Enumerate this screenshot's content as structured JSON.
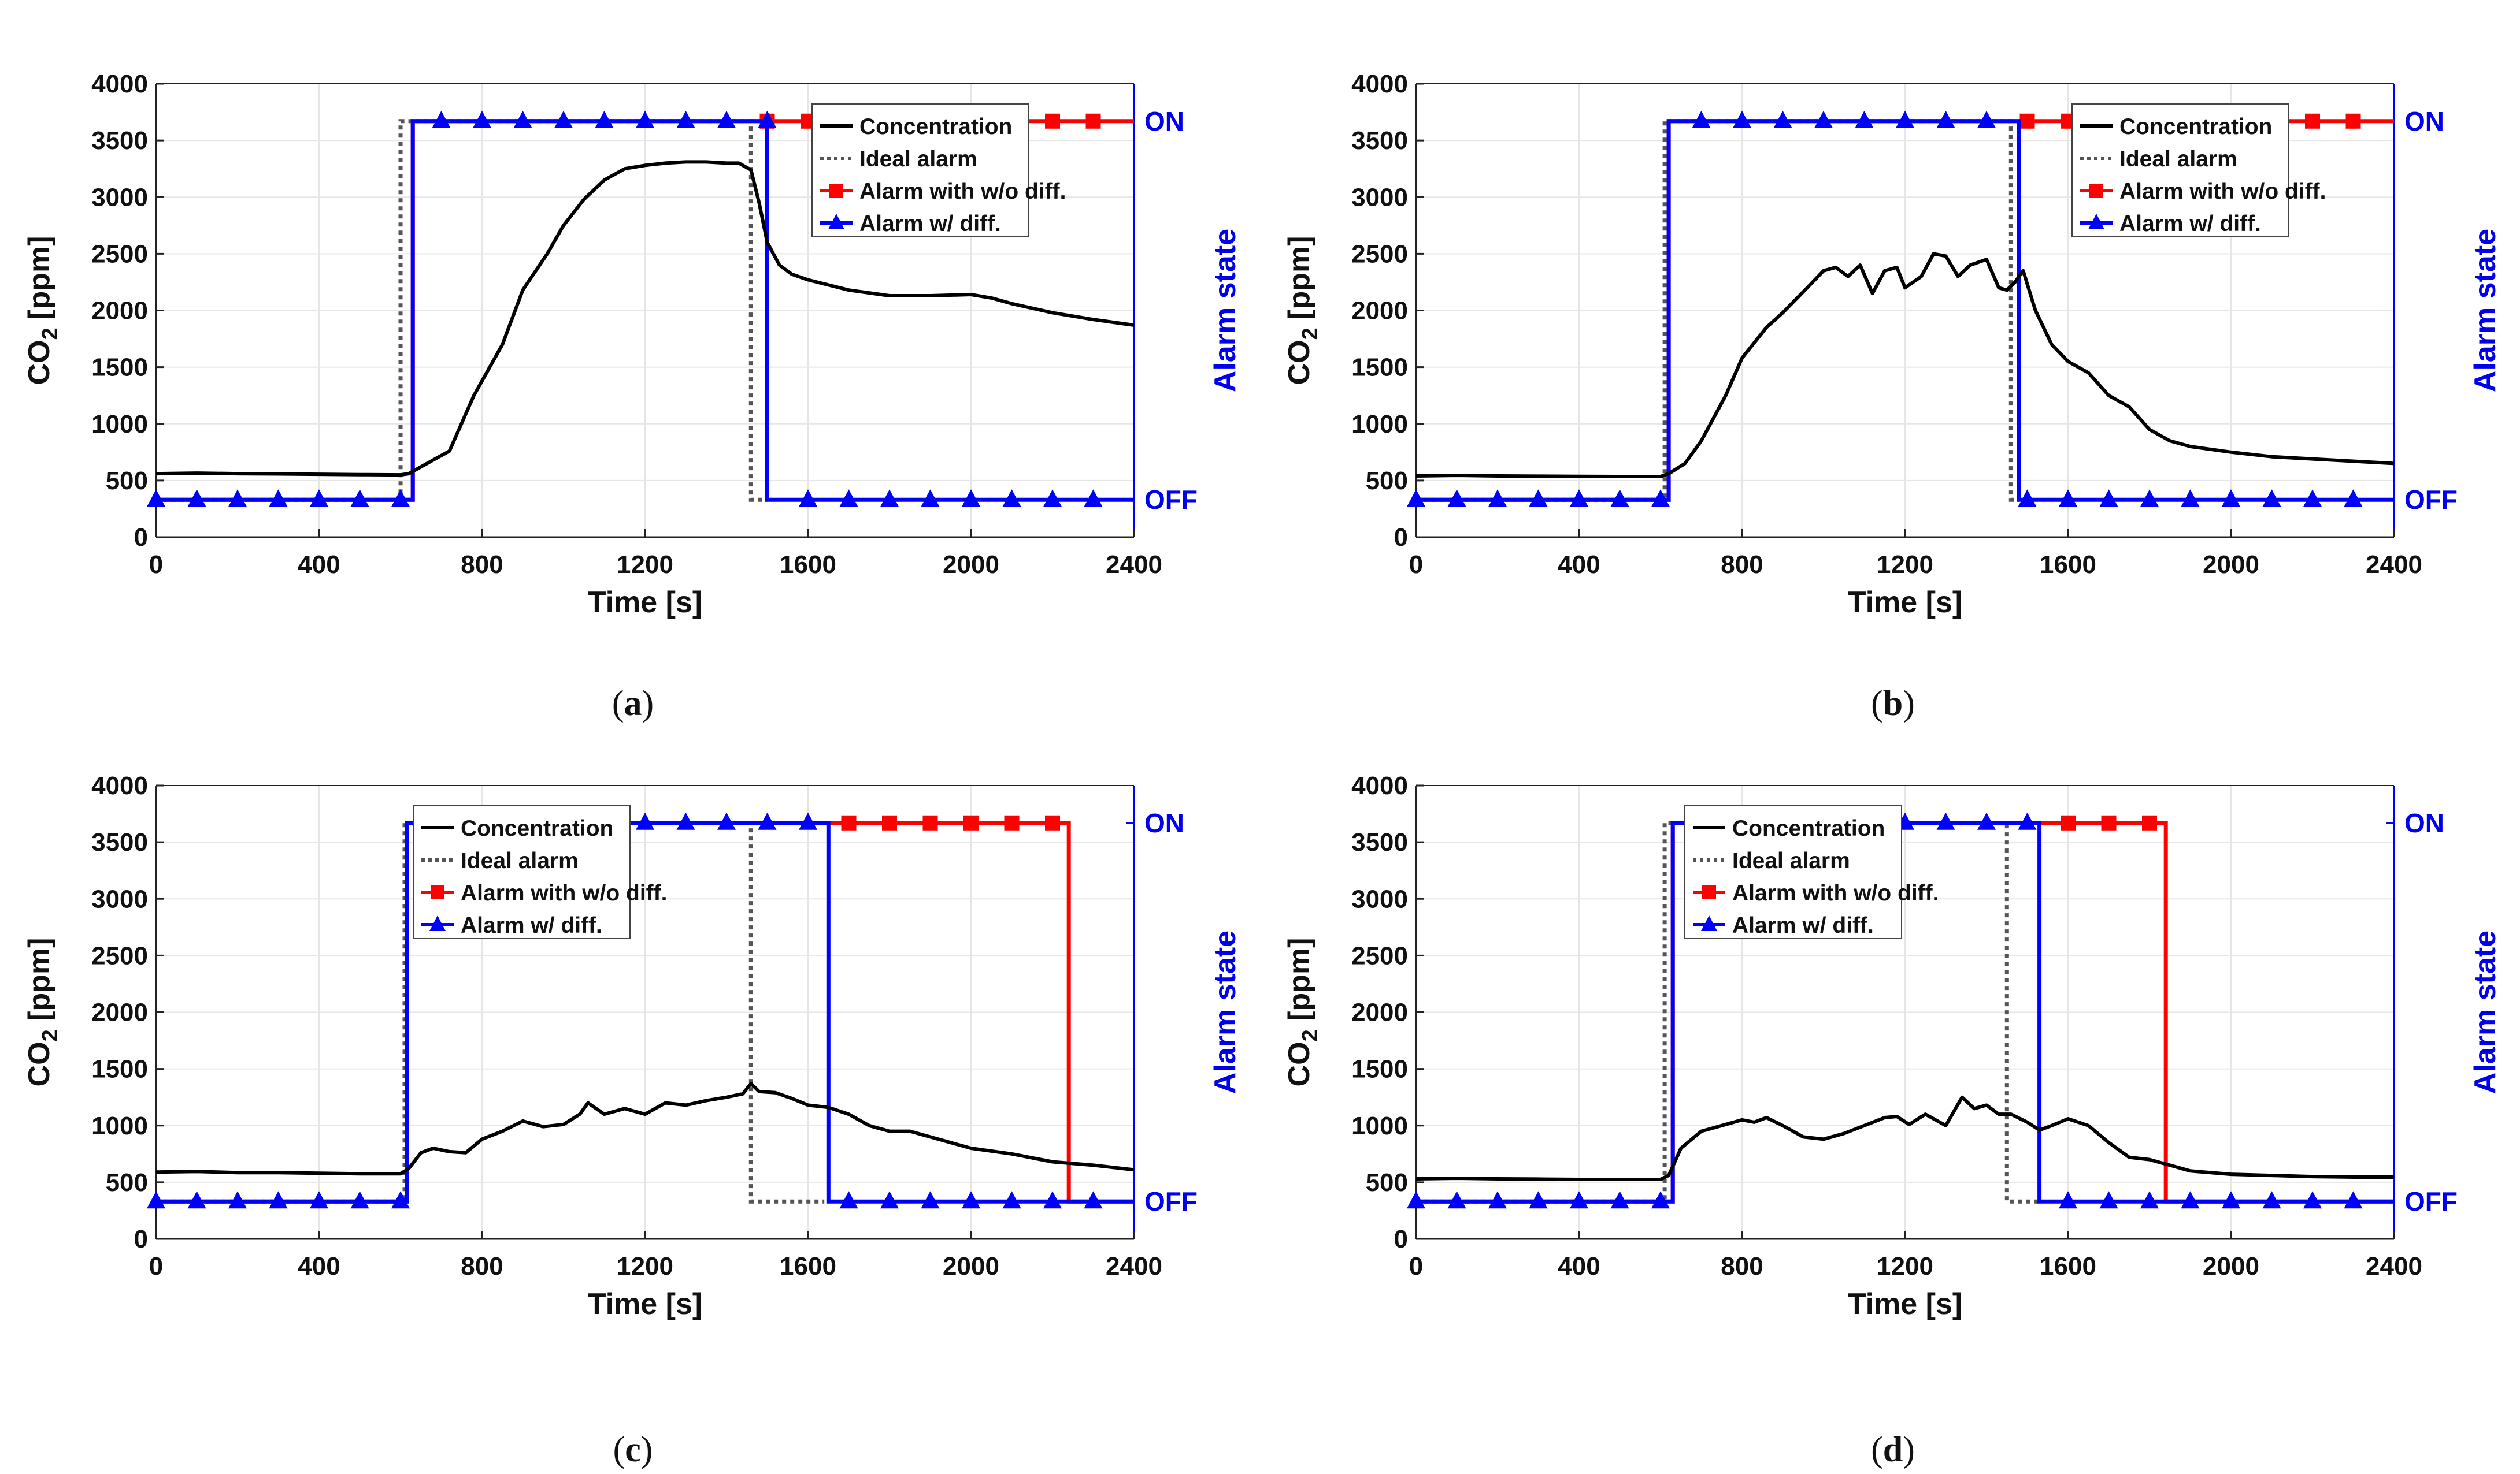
{
  "figure": {
    "panels": [
      {
        "caption_open": "(",
        "caption_letter": "a",
        "caption_close": ")"
      },
      {
        "caption_open": "(",
        "caption_letter": "b",
        "caption_close": ")"
      },
      {
        "caption_open": "(",
        "caption_letter": "c",
        "caption_close": ")"
      },
      {
        "caption_open": "(",
        "caption_letter": "d",
        "caption_close": ")"
      }
    ]
  },
  "chart_data": [
    {
      "type": "line",
      "panel": "a",
      "xlabel": "Time [s]",
      "ylabel": "CO2 [ppm]",
      "ylabel_main": "CO",
      "ylabel_sub": "2",
      "ylabel_unit": " [ppm]",
      "y2label": "Alarm state",
      "y2_on_label": "ON",
      "y2_off_label": "OFF",
      "xlim": [
        0,
        2400
      ],
      "ylim": [
        0,
        4000
      ],
      "xticks": [
        "0",
        "400",
        "800",
        "1200",
        "1600",
        "2000",
        "2400"
      ],
      "yticks": [
        "0",
        "500",
        "1000",
        "1500",
        "2000",
        "2500",
        "3000",
        "3500",
        "4000"
      ],
      "grid": true,
      "legend_position": "top-right",
      "legend": [
        "Concentration",
        "Ideal alarm",
        "Alarm with w/o diff.",
        "Alarm w/ diff."
      ],
      "series": [
        {
          "name": "Concentration",
          "color": "#000000",
          "style": "solid",
          "x": [
            0,
            100,
            200,
            300,
            400,
            500,
            600,
            620,
            680,
            720,
            780,
            850,
            900,
            960,
            1000,
            1050,
            1100,
            1150,
            1200,
            1250,
            1300,
            1350,
            1400,
            1430,
            1460,
            1480,
            1500,
            1530,
            1560,
            1600,
            1700,
            1800,
            1900,
            2000,
            2050,
            2100,
            2200,
            2300,
            2400
          ],
          "y": [
            560,
            565,
            560,
            558,
            555,
            552,
            550,
            560,
            680,
            760,
            1250,
            1700,
            2180,
            2500,
            2750,
            2980,
            3150,
            3250,
            3280,
            3300,
            3310,
            3310,
            3300,
            3300,
            3240,
            2950,
            2600,
            2400,
            2320,
            2270,
            2180,
            2130,
            2130,
            2140,
            2110,
            2060,
            1980,
            1920,
            1870
          ]
        },
        {
          "name": "Ideal alarm",
          "color": "#555555",
          "style": "dotted",
          "x": [
            0,
            600,
            600,
            1460,
            1460,
            1500
          ],
          "y": [
            0,
            0,
            1,
            1,
            0,
            0
          ]
        },
        {
          "name": "Alarm with w/o diff.",
          "color": "#ff0000",
          "style": "solid",
          "marker": "square",
          "x": [
            0,
            630,
            630,
            2400
          ],
          "y": [
            0,
            0,
            1,
            1
          ]
        },
        {
          "name": "Alarm w/ diff.",
          "color": "#0000ff",
          "style": "solid",
          "marker": "triangle",
          "x": [
            0,
            630,
            630,
            1500,
            1500,
            2400
          ],
          "y": [
            0,
            0,
            1,
            1,
            0,
            0
          ]
        }
      ]
    },
    {
      "type": "line",
      "panel": "b",
      "xlabel": "Time [s]",
      "ylabel": "CO2 [ppm]",
      "ylabel_main": "CO",
      "ylabel_sub": "2",
      "ylabel_unit": " [ppm]",
      "y2label": "Alarm state",
      "y2_on_label": "ON",
      "y2_off_label": "OFF",
      "xlim": [
        0,
        2400
      ],
      "ylim": [
        0,
        4000
      ],
      "xticks": [
        "0",
        "400",
        "800",
        "1200",
        "1600",
        "2000",
        "2400"
      ],
      "yticks": [
        "0",
        "500",
        "1000",
        "1500",
        "2000",
        "2500",
        "3000",
        "3500",
        "4000"
      ],
      "grid": true,
      "legend_position": "top-right",
      "legend": [
        "Concentration",
        "Ideal alarm",
        "Alarm with w/o diff.",
        "Alarm w/ diff."
      ],
      "series": [
        {
          "name": "Concentration",
          "color": "#000000",
          "style": "solid",
          "x": [
            0,
            100,
            200,
            300,
            400,
            500,
            600,
            620,
            660,
            700,
            760,
            800,
            860,
            900,
            960,
            1000,
            1030,
            1060,
            1090,
            1120,
            1150,
            1180,
            1200,
            1240,
            1270,
            1300,
            1330,
            1360,
            1400,
            1430,
            1450,
            1470,
            1490,
            1520,
            1560,
            1600,
            1650,
            1700,
            1750,
            1800,
            1850,
            1900,
            2000,
            2100,
            2200,
            2300,
            2400
          ],
          "y": [
            540,
            545,
            540,
            538,
            536,
            535,
            535,
            560,
            650,
            850,
            1250,
            1580,
            1850,
            1980,
            2200,
            2350,
            2380,
            2300,
            2400,
            2150,
            2350,
            2380,
            2200,
            2300,
            2500,
            2480,
            2300,
            2400,
            2450,
            2200,
            2180,
            2250,
            2350,
            2000,
            1700,
            1550,
            1450,
            1250,
            1150,
            950,
            850,
            800,
            750,
            710,
            690,
            670,
            650
          ]
        },
        {
          "name": "Ideal alarm",
          "color": "#555555",
          "style": "dotted",
          "x": [
            0,
            610,
            610,
            1460,
            1460,
            1480
          ],
          "y": [
            0,
            0,
            1,
            1,
            0,
            0
          ]
        },
        {
          "name": "Alarm with w/o diff.",
          "color": "#ff0000",
          "style": "solid",
          "marker": "square",
          "x": [
            0,
            620,
            620,
            2400
          ],
          "y": [
            0,
            0,
            1,
            1
          ]
        },
        {
          "name": "Alarm w/ diff.",
          "color": "#0000ff",
          "style": "solid",
          "marker": "triangle",
          "x": [
            0,
            620,
            620,
            1480,
            1480,
            2400
          ],
          "y": [
            0,
            0,
            1,
            1,
            0,
            0
          ]
        }
      ]
    },
    {
      "type": "line",
      "panel": "c",
      "xlabel": "Time [s]",
      "ylabel": "CO2 [ppm]",
      "ylabel_main": "CO",
      "ylabel_sub": "2",
      "ylabel_unit": " [ppm]",
      "y2label": "Alarm state",
      "y2_on_label": "ON",
      "y2_off_label": "OFF",
      "xlim": [
        0,
        2400
      ],
      "ylim": [
        0,
        4000
      ],
      "xticks": [
        "0",
        "400",
        "800",
        "1200",
        "1600",
        "2000",
        "2400"
      ],
      "yticks": [
        "0",
        "500",
        "1000",
        "1500",
        "2000",
        "2500",
        "3000",
        "3500",
        "4000"
      ],
      "grid": true,
      "legend_position": "top-left",
      "legend": [
        "Concentration",
        "Ideal alarm",
        "Alarm with w/o diff.",
        "Alarm w/ diff."
      ],
      "series": [
        {
          "name": "Concentration",
          "color": "#000000",
          "style": "solid",
          "x": [
            0,
            100,
            200,
            300,
            400,
            500,
            600,
            620,
            650,
            680,
            720,
            760,
            800,
            850,
            900,
            950,
            1000,
            1040,
            1060,
            1080,
            1100,
            1150,
            1200,
            1250,
            1300,
            1350,
            1400,
            1440,
            1460,
            1480,
            1520,
            1560,
            1600,
            1650,
            1700,
            1750,
            1800,
            1850,
            1900,
            2000,
            2100,
            2200,
            2300,
            2400
          ],
          "y": [
            590,
            595,
            585,
            585,
            580,
            575,
            575,
            620,
            760,
            800,
            770,
            760,
            880,
            950,
            1040,
            990,
            1010,
            1100,
            1200,
            1150,
            1100,
            1150,
            1100,
            1200,
            1180,
            1220,
            1250,
            1280,
            1370,
            1300,
            1290,
            1240,
            1180,
            1160,
            1100,
            1000,
            950,
            950,
            900,
            800,
            750,
            680,
            650,
            610
          ]
        },
        {
          "name": "Ideal alarm",
          "color": "#555555",
          "style": "dotted",
          "x": [
            0,
            610,
            610,
            1460,
            1460,
            1640
          ],
          "y": [
            0,
            0,
            1,
            1,
            0,
            0
          ]
        },
        {
          "name": "Alarm with w/o diff.",
          "color": "#ff0000",
          "style": "solid",
          "marker": "square",
          "x": [
            0,
            615,
            615,
            2240,
            2240,
            2400
          ],
          "y": [
            0,
            0,
            1,
            1,
            0,
            0
          ]
        },
        {
          "name": "Alarm w/ diff.",
          "color": "#0000ff",
          "style": "solid",
          "marker": "triangle",
          "x": [
            0,
            615,
            615,
            1650,
            1650,
            2400
          ],
          "y": [
            0,
            0,
            1,
            1,
            0,
            0
          ]
        }
      ]
    },
    {
      "type": "line",
      "panel": "d",
      "xlabel": "Time [s]",
      "ylabel": "CO2 [ppm]",
      "ylabel_main": "CO",
      "ylabel_sub": "2",
      "ylabel_unit": " [ppm]",
      "y2label": "Alarm state",
      "y2_on_label": "ON",
      "y2_off_label": "OFF",
      "xlim": [
        0,
        2400
      ],
      "ylim": [
        0,
        4000
      ],
      "xticks": [
        "0",
        "400",
        "800",
        "1200",
        "1600",
        "2000",
        "2400"
      ],
      "yticks": [
        "0",
        "500",
        "1000",
        "1500",
        "2000",
        "2500",
        "3000",
        "3500",
        "4000"
      ],
      "grid": true,
      "legend_position": "top-left",
      "legend": [
        "Concentration",
        "Ideal alarm",
        "Alarm with w/o diff.",
        "Alarm w/ diff."
      ],
      "series": [
        {
          "name": "Concentration",
          "color": "#000000",
          "style": "solid",
          "x": [
            0,
            100,
            200,
            300,
            400,
            500,
            600,
            620,
            650,
            700,
            750,
            800,
            830,
            860,
            900,
            950,
            1000,
            1050,
            1100,
            1150,
            1180,
            1210,
            1250,
            1300,
            1340,
            1370,
            1400,
            1430,
            1460,
            1500,
            1530,
            1560,
            1600,
            1650,
            1700,
            1750,
            1800,
            1850,
            1900,
            2000,
            2100,
            2200,
            2300,
            2400
          ],
          "y": [
            530,
            535,
            530,
            528,
            525,
            525,
            525,
            560,
            800,
            950,
            1000,
            1050,
            1030,
            1070,
            1000,
            900,
            880,
            930,
            1000,
            1070,
            1080,
            1010,
            1100,
            1000,
            1250,
            1150,
            1180,
            1100,
            1100,
            1030,
            960,
            1000,
            1060,
            1000,
            850,
            720,
            700,
            650,
            600,
            570,
            560,
            550,
            545,
            545
          ]
        },
        {
          "name": "Ideal alarm",
          "color": "#555555",
          "style": "dotted",
          "x": [
            0,
            610,
            610,
            1450,
            1450,
            1530
          ],
          "y": [
            0,
            0,
            1,
            1,
            0,
            0
          ]
        },
        {
          "name": "Alarm with w/o diff.",
          "color": "#ff0000",
          "style": "solid",
          "marker": "square",
          "x": [
            0,
            630,
            630,
            1840,
            1840,
            2400
          ],
          "y": [
            0,
            0,
            1,
            1,
            0,
            0
          ]
        },
        {
          "name": "Alarm w/ diff.",
          "color": "#0000ff",
          "style": "solid",
          "marker": "triangle",
          "x": [
            0,
            630,
            630,
            1530,
            1530,
            2400
          ],
          "y": [
            0,
            0,
            1,
            1,
            0,
            0
          ]
        }
      ]
    }
  ]
}
